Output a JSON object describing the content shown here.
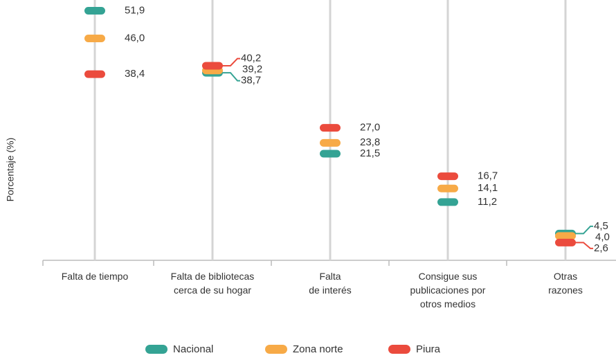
{
  "chart_data": {
    "type": "dot",
    "y_label": "Porcentaje (%)",
    "categories": [
      [
        "Falta de tiempo"
      ],
      [
        "Falta de bibliotecas",
        "cerca de su hogar"
      ],
      [
        "Falta",
        "de interés"
      ],
      [
        "Consigue sus",
        "publicaciones por",
        "otros medios"
      ],
      [
        "Otras",
        "razones"
      ]
    ],
    "ylim": [
      0,
      53
    ],
    "series": [
      {
        "name": "Nacional",
        "color": "#34a394",
        "values": [
          51.9,
          38.7,
          21.5,
          11.2,
          4.5
        ],
        "value_labels": [
          "51,9",
          "38,7",
          "21,5",
          "11,2",
          "4,5"
        ]
      },
      {
        "name": "Zona norte",
        "color": "#f7aa47",
        "values": [
          46.0,
          39.2,
          23.8,
          14.1,
          4.0
        ],
        "value_labels": [
          "46,0",
          "39,2",
          "23,8",
          "14,1",
          "4,0"
        ]
      },
      {
        "name": "Piura",
        "color": "#eb4b3d",
        "values": [
          38.4,
          40.2,
          27.0,
          16.7,
          2.6
        ],
        "value_labels": [
          "38,4",
          "40,2",
          "27,0",
          "16,7",
          "2,6"
        ]
      }
    ]
  }
}
